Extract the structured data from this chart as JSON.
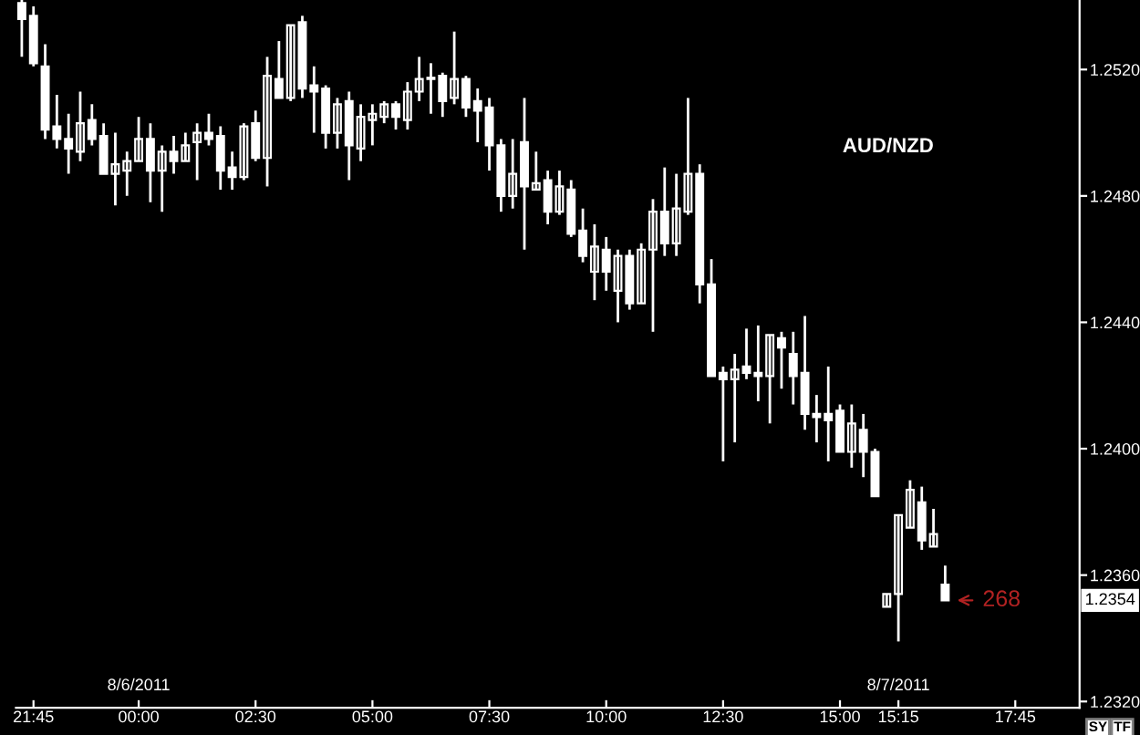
{
  "chart_data": {
    "type": "candlestick",
    "title": "AUD/NZD",
    "categories": [
      null,
      "21:45",
      null,
      null,
      null,
      null,
      null,
      null,
      null,
      null,
      "00:00",
      null,
      null,
      null,
      null,
      null,
      null,
      null,
      null,
      null,
      "02:30",
      null,
      null,
      null,
      null,
      null,
      null,
      null,
      null,
      null,
      "05:00",
      null,
      null,
      null,
      null,
      null,
      null,
      null,
      null,
      null,
      "07:30",
      null,
      null,
      null,
      null,
      null,
      null,
      null,
      null,
      null,
      "10:00",
      null,
      null,
      null,
      null,
      null,
      null,
      null,
      null,
      null,
      "12:30",
      null,
      null,
      null,
      null,
      null,
      null,
      null,
      null,
      null,
      "15:00",
      null,
      null,
      null,
      null,
      "15:15",
      null,
      null,
      null,
      null,
      null,
      null,
      null,
      null,
      null,
      "17:45",
      null,
      null,
      null,
      null,
      null
    ],
    "ohlc": [
      [
        1.2541,
        1.2542,
        1.2524,
        1.2536
      ],
      [
        1.2537,
        1.254,
        1.2521,
        1.2522
      ],
      [
        1.2521,
        1.2528,
        1.2498,
        1.2501
      ],
      [
        1.2502,
        1.2512,
        1.2495,
        1.2498
      ],
      [
        1.2498,
        1.2506,
        1.2487,
        1.2495
      ],
      [
        1.2494,
        1.2513,
        1.2491,
        1.2503
      ],
      [
        1.2504,
        1.2509,
        1.2496,
        1.2498
      ],
      [
        1.2499,
        1.2503,
        1.2487,
        1.2487
      ],
      [
        1.2487,
        1.25,
        1.2477,
        1.249
      ],
      [
        1.2488,
        1.2494,
        1.248,
        1.2491
      ],
      [
        1.2491,
        1.2505,
        1.2491,
        1.2498
      ],
      [
        1.2498,
        1.2503,
        1.2478,
        1.2488
      ],
      [
        1.2488,
        1.2496,
        1.2475,
        1.2494
      ],
      [
        1.2494,
        1.2499,
        1.2487,
        1.2491
      ],
      [
        1.2491,
        1.25,
        1.2491,
        1.2496
      ],
      [
        1.2497,
        1.2503,
        1.2485,
        1.25
      ],
      [
        1.25,
        1.2506,
        1.2496,
        1.2498
      ],
      [
        1.2499,
        1.2502,
        1.2482,
        1.2488
      ],
      [
        1.2489,
        1.2494,
        1.2482,
        1.2486
      ],
      [
        1.2486,
        1.2503,
        1.2485,
        1.2502
      ],
      [
        1.2503,
        1.2507,
        1.2491,
        1.2492
      ],
      [
        1.2492,
        1.2524,
        1.2483,
        1.2518
      ],
      [
        1.2517,
        1.2529,
        1.2511,
        1.2511
      ],
      [
        1.2511,
        1.2534,
        1.251,
        1.2534
      ],
      [
        1.2535,
        1.2537,
        1.2511,
        1.2514
      ],
      [
        1.2515,
        1.2521,
        1.25,
        1.2513
      ],
      [
        1.2514,
        1.2515,
        1.2495,
        1.25
      ],
      [
        1.25,
        1.2511,
        1.2495,
        1.2509
      ],
      [
        1.251,
        1.2513,
        1.2485,
        1.2496
      ],
      [
        1.2495,
        1.2509,
        1.2491,
        1.2505
      ],
      [
        1.2504,
        1.2509,
        1.2496,
        1.2506
      ],
      [
        1.2505,
        1.251,
        1.2503,
        1.2509
      ],
      [
        1.2509,
        1.251,
        1.2501,
        1.2505
      ],
      [
        1.2504,
        1.2516,
        1.2501,
        1.2513
      ],
      [
        1.2513,
        1.2524,
        1.251,
        1.2517
      ],
      [
        1.2517,
        1.2522,
        1.2506,
        1.2517
      ],
      [
        1.2518,
        1.2519,
        1.2505,
        1.251
      ],
      [
        1.2511,
        1.2532,
        1.2509,
        1.2517
      ],
      [
        1.2517,
        1.2518,
        1.2505,
        1.2508
      ],
      [
        1.251,
        1.2514,
        1.2497,
        1.2507
      ],
      [
        1.2508,
        1.2511,
        1.2488,
        1.2496
      ],
      [
        1.2496,
        1.2498,
        1.2475,
        1.248
      ],
      [
        1.248,
        1.2498,
        1.2476,
        1.2487
      ],
      [
        1.2497,
        1.2511,
        1.2463,
        1.2483
      ],
      [
        1.2482,
        1.2494,
        1.2482,
        1.2484
      ],
      [
        1.2485,
        1.2488,
        1.2471,
        1.2475
      ],
      [
        1.2475,
        1.2488,
        1.2474,
        1.2483
      ],
      [
        1.2482,
        1.2485,
        1.2467,
        1.2468
      ],
      [
        1.2469,
        1.2476,
        1.2459,
        1.2461
      ],
      [
        1.2456,
        1.2471,
        1.2447,
        1.2464
      ],
      [
        1.2463,
        1.2467,
        1.245,
        1.2456
      ],
      [
        1.245,
        1.2463,
        1.244,
        1.2461
      ],
      [
        1.2461,
        1.2463,
        1.2444,
        1.2446
      ],
      [
        1.2446,
        1.2465,
        1.2446,
        1.2463
      ],
      [
        1.2463,
        1.2479,
        1.2437,
        1.2475
      ],
      [
        1.2475,
        1.2489,
        1.2461,
        1.2465
      ],
      [
        1.2465,
        1.2487,
        1.2461,
        1.2476
      ],
      [
        1.2475,
        1.2511,
        1.2474,
        1.2487
      ],
      [
        1.2487,
        1.249,
        1.2446,
        1.2452
      ],
      [
        1.2452,
        1.246,
        1.2423,
        1.2423
      ],
      [
        1.2424,
        1.2426,
        1.2396,
        1.2422
      ],
      [
        1.2422,
        1.243,
        1.2402,
        1.2425
      ],
      [
        1.2426,
        1.2438,
        1.2422,
        1.2424
      ],
      [
        1.2424,
        1.2439,
        1.2415,
        1.2423
      ],
      [
        1.2423,
        1.2436,
        1.2408,
        1.2436
      ],
      [
        1.2435,
        1.2437,
        1.2419,
        1.2432
      ],
      [
        1.243,
        1.2437,
        1.2414,
        1.2423
      ],
      [
        1.2424,
        1.2442,
        1.2406,
        1.2411
      ],
      [
        1.2411,
        1.2417,
        1.2402,
        1.241
      ],
      [
        1.2411,
        1.2426,
        1.2396,
        1.2409
      ],
      [
        1.2412,
        1.2414,
        1.2399,
        1.2399
      ],
      [
        1.2399,
        1.2414,
        1.2394,
        1.2408
      ],
      [
        1.2406,
        1.2411,
        1.2391,
        1.2399
      ],
      [
        1.2399,
        1.24,
        1.2385,
        1.2385
      ],
      [
        1.235,
        1.2354,
        1.235,
        1.2354
      ],
      [
        1.2354,
        1.2379,
        1.2339,
        1.2379
      ],
      [
        1.2375,
        1.239,
        1.2375,
        1.2387
      ],
      [
        1.2383,
        1.2388,
        1.2368,
        1.2371
      ],
      [
        1.2369,
        1.2381,
        1.2369,
        1.2373
      ],
      [
        1.2357,
        1.2363,
        1.2352,
        1.2352
      ],
      null,
      null,
      null,
      null,
      null,
      null,
      null,
      null,
      null,
      null,
      null
    ],
    "color": "#ffffff",
    "ylim": [
      1.2318,
      1.2542
    ],
    "yticks": [
      {
        "value": 1.232,
        "label": "1.2320"
      },
      {
        "value": 1.236,
        "label": "1.2360"
      },
      {
        "value": 1.24,
        "label": "1.2400"
      },
      {
        "value": 1.244,
        "label": "1.2440"
      },
      {
        "value": 1.248,
        "label": "1.2480"
      },
      {
        "value": 1.252,
        "label": "1.2520"
      }
    ],
    "annotations": [
      "8/6/2011",
      "8/7/2011",
      "268",
      "1.2354",
      "SY",
      "TF"
    ],
    "grid": false,
    "legend": false
  }
}
